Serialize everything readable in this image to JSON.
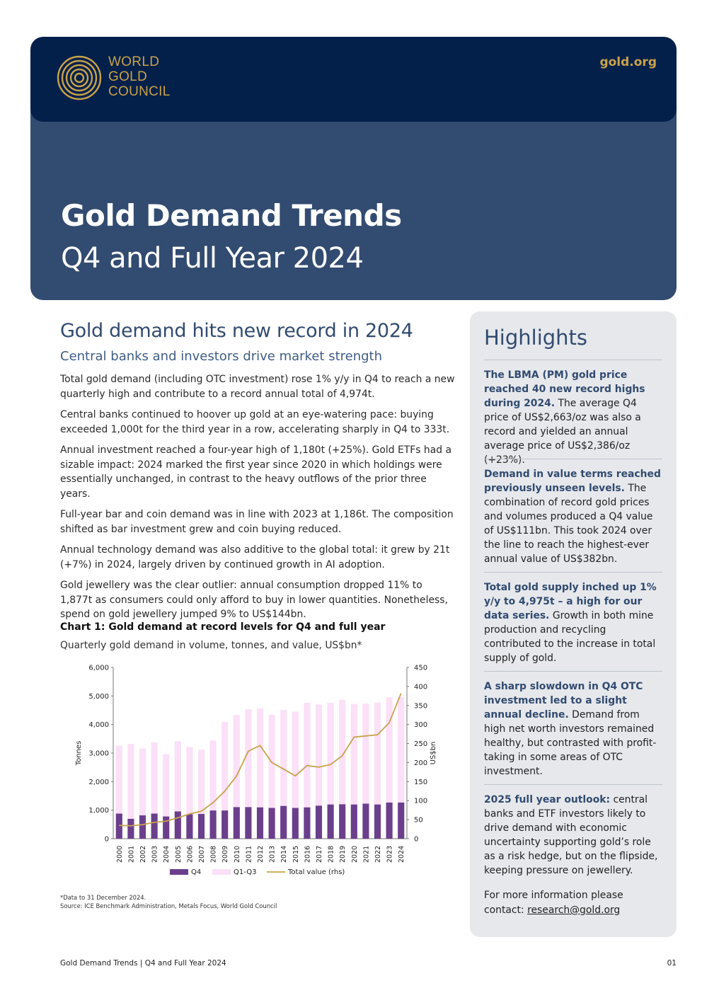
{
  "header": {
    "logo_lines": [
      "WORLD",
      "GOLD",
      "COUNCIL"
    ],
    "site": "gold.org",
    "title": "Gold Demand Trends",
    "subtitle": "Q4 and Full Year 2024"
  },
  "main": {
    "heading": "Gold demand hits new record in 2024",
    "subheading": "Central banks and investors drive market strength",
    "paragraphs": [
      "Total gold demand (including OTC investment) rose 1% y/y in Q4 to reach a new quarterly high and contribute to a record annual total of 4,974t.",
      "Central banks continued to hoover up gold at an eye-watering pace: buying exceeded 1,000t for the third year in a row, accelerating sharply in Q4 to 333t.",
      "Annual investment reached a four-year high of 1,180t (+25%). Gold ETFs had a sizable impact: 2024 marked the first year since 2020 in which holdings were essentially unchanged, in contrast to the heavy outflows of the prior three years.",
      "Full-year bar and coin demand was in line with 2023 at 1,186t. The composition shifted as bar investment grew and coin buying reduced.",
      "Annual technology demand was also additive to the global total: it grew by 21t (+7%) in 2024, largely driven by continued growth in AI adoption.",
      "Gold jewellery was the clear outlier: annual consumption dropped 11% to 1,877t as consumers could only afford to buy in lower quantities. Nonetheless, spend on gold jewellery jumped 9% to US$144bn."
    ],
    "chart_title": "Chart 1: Gold demand at record levels for Q4 and full year",
    "chart_subtitle": "Quarterly gold demand in volume, tonnes, and value, US$bn*",
    "notes": [
      "*Data to 31 December 2024.",
      "Source: ICE Benchmark Administration, Metals Focus, World Gold Council"
    ]
  },
  "chart_data": {
    "type": "bar",
    "categories": [
      "2000",
      "2001",
      "2002",
      "2003",
      "2004",
      "2005",
      "2006",
      "2007",
      "2008",
      "2009",
      "2010",
      "2011",
      "2012",
      "2013",
      "2014",
      "2015",
      "2016",
      "2017",
      "2018",
      "2019",
      "2020",
      "2021",
      "2022",
      "2023",
      "2024"
    ],
    "series": [
      {
        "name": "Q4",
        "type": "bar",
        "axis": "left",
        "color": "#6b3f8c",
        "values": [
          880,
          700,
          820,
          880,
          780,
          960,
          860,
          870,
          990,
          990,
          1110,
          1110,
          1100,
          1080,
          1150,
          1080,
          1100,
          1160,
          1200,
          1210,
          1200,
          1230,
          1200,
          1270,
          1270
        ]
      },
      {
        "name": "Q1-Q3",
        "type": "bar",
        "axis": "left",
        "color": "#fbe0f8",
        "values": [
          2380,
          2620,
          2340,
          2500,
          2180,
          2460,
          2350,
          2250,
          2450,
          3100,
          3220,
          3420,
          3460,
          3260,
          3360,
          3370,
          3660,
          3540,
          3560,
          3660,
          3520,
          3500,
          3570,
          3680,
          3700
        ]
      },
      {
        "name": "Total value (rhs)",
        "type": "line",
        "axis": "right",
        "color": "#c9a24a",
        "values": [
          35,
          34,
          37,
          43,
          46,
          55,
          65,
          72,
          95,
          125,
          165,
          230,
          245,
          200,
          183,
          165,
          192,
          188,
          195,
          218,
          267,
          270,
          273,
          305,
          382
        ]
      }
    ],
    "ylabel": "Tonnes",
    "y2label": "US$bn",
    "ylim": [
      0,
      6000
    ],
    "y2lim": [
      0,
      450
    ],
    "yticks": [
      "0",
      "1,000",
      "2,000",
      "3,000",
      "4,000",
      "5,000",
      "6,000"
    ],
    "y2ticks": [
      "0",
      "50",
      "100",
      "150",
      "200",
      "250",
      "300",
      "350",
      "400",
      "450"
    ],
    "legend_position": "bottom",
    "grid": false
  },
  "sidebar": {
    "heading": "Highlights",
    "items": [
      {
        "bold": "The LBMA (PM) gold price reached 40 new record highs during 2024.",
        "text": " The average Q4 price of US$2,663/oz was also a record and yielded an annual average price of US$2,386/oz (+23%)."
      },
      {
        "bold": "Demand in value terms reached previously unseen levels.",
        "text": " The combination of record gold prices and volumes produced a Q4 value of US$111bn. This took 2024 over the line to reach the highest-ever annual value of US$382bn."
      },
      {
        "bold": "Total gold supply inched up 1% y/y to 4,975t – a high for our data series.",
        "text": " Growth in both mine production and recycling contributed to the increase in total supply of gold."
      },
      {
        "bold": "A sharp slowdown in Q4 OTC investment led to a slight annual decline.",
        "text": " Demand from high net worth investors remained healthy, but contrasted with profit-taking in some areas of OTC investment."
      },
      {
        "bold": "2025 full year outlook:",
        "text": " central banks and ETF investors likely to drive demand with economic uncertainty supporting gold’s role as a risk hedge, but on the flipside, keeping pressure on jewellery."
      }
    ],
    "contact_text": "For more information please contact: ",
    "contact_email": "research@gold.org"
  },
  "footer": {
    "left": "Gold Demand Trends | Q4 and Full Year 2024",
    "right": "01"
  }
}
